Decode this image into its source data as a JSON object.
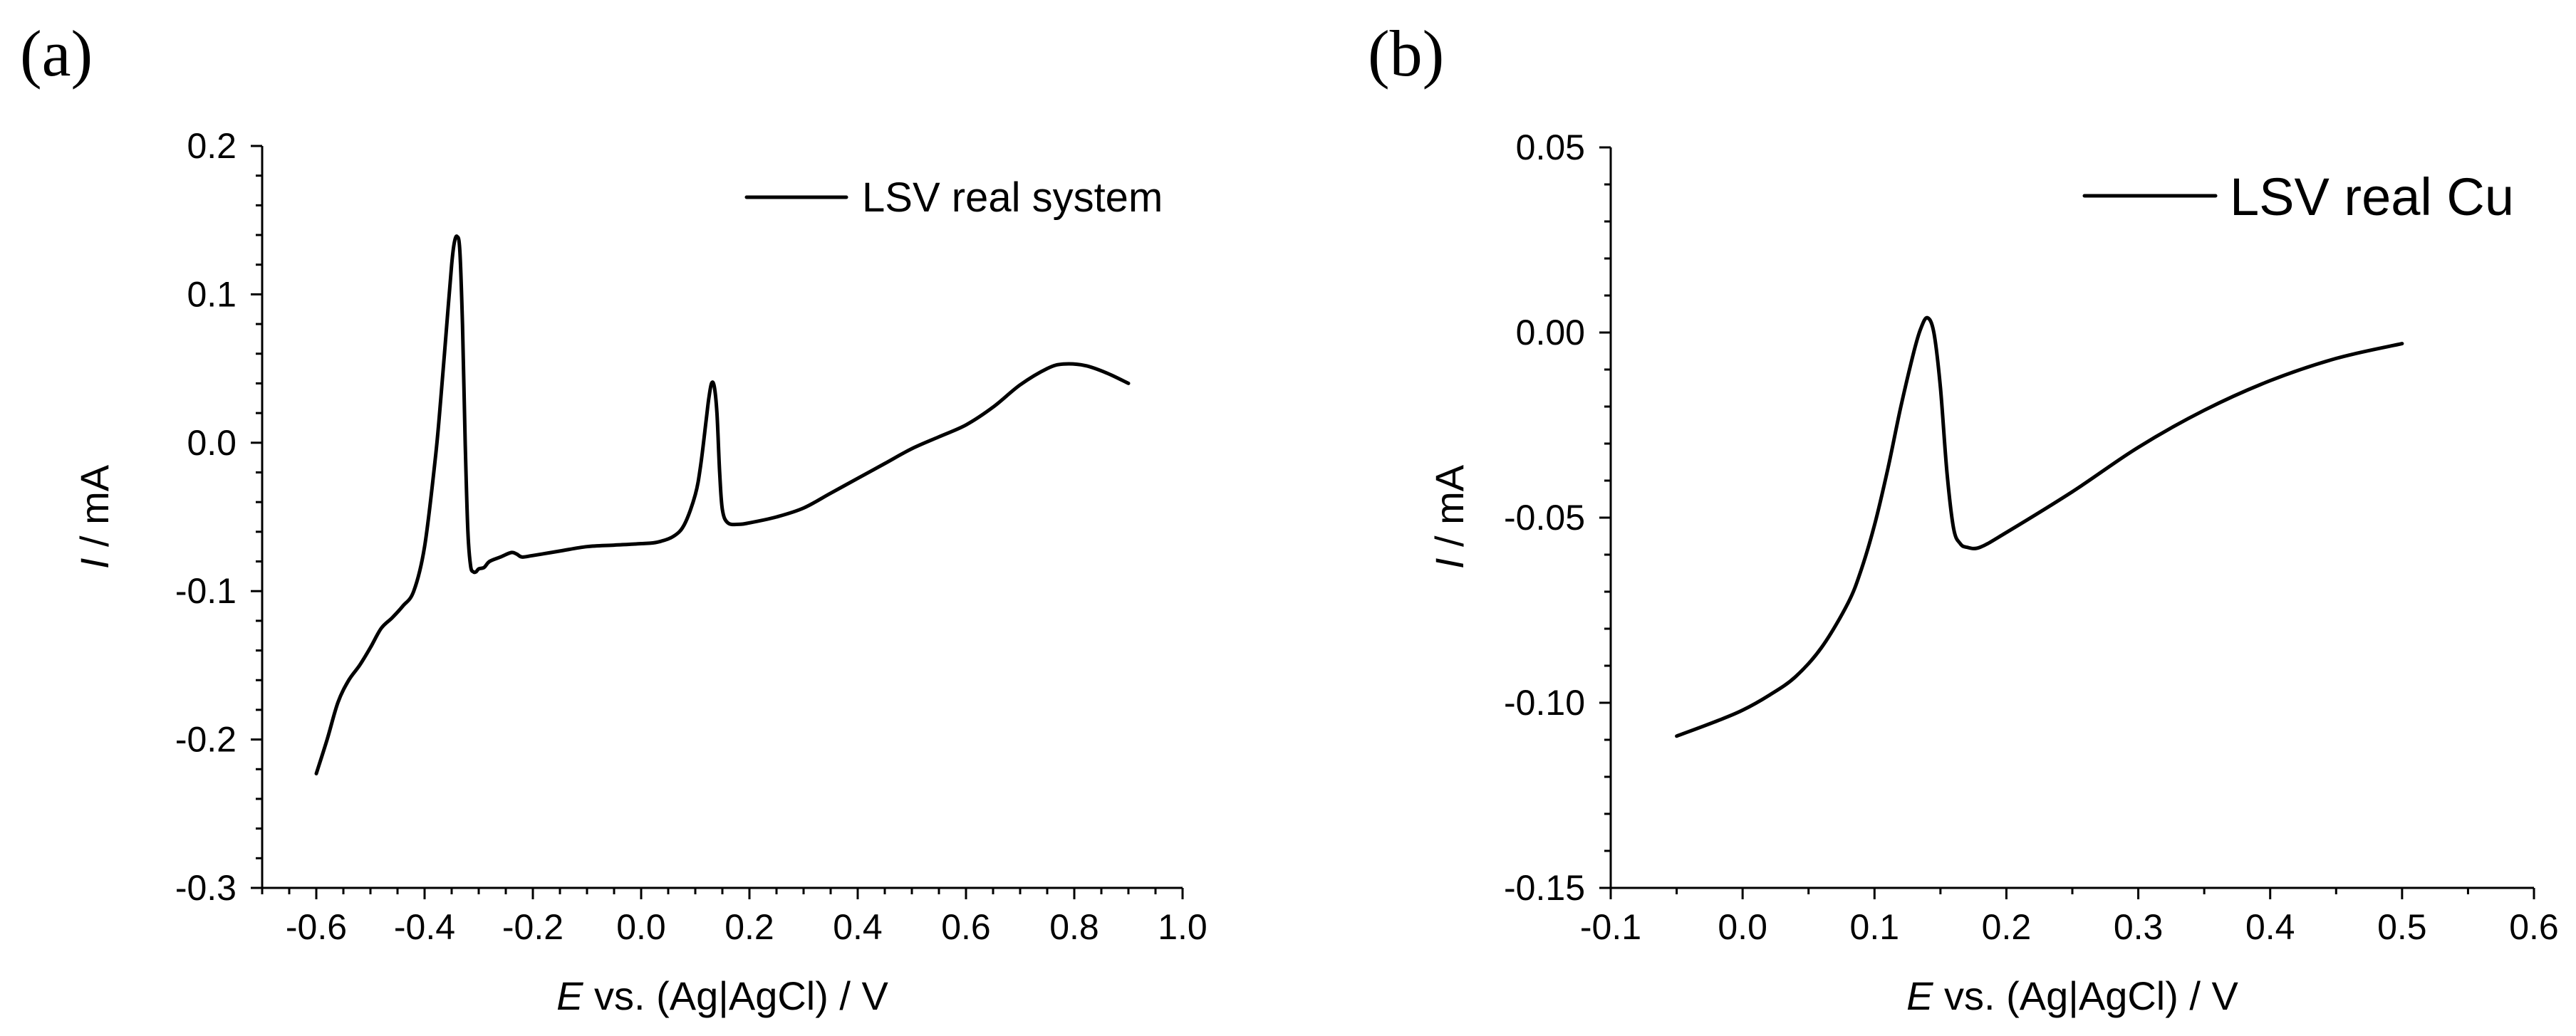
{
  "chart_data": [
    {
      "type": "line",
      "panel_label": "(a)",
      "title": "",
      "xlabel_italic": "E",
      "xlabel_rest": " vs. (Ag|AgCl) / V",
      "ylabel_italic": "I",
      "ylabel_rest": " / mA",
      "xlim": [
        -0.7,
        1.0
      ],
      "ylim": [
        -0.3,
        0.2
      ],
      "xticks": [
        "-0.6",
        "-0.4",
        "-0.2",
        "0.0",
        "0.2",
        "0.4",
        "0.6",
        "0.8",
        "1.0"
      ],
      "xtick_values": [
        -0.6,
        -0.4,
        -0.2,
        0.0,
        0.2,
        0.4,
        0.6,
        0.8,
        1.0
      ],
      "yticks": [
        "0.2",
        "0.1",
        "0.0",
        "-0.1",
        "-0.2",
        "-0.3"
      ],
      "ytick_values": [
        0.2,
        0.1,
        0.0,
        -0.1,
        -0.2,
        -0.3
      ],
      "grid": false,
      "legend_position": "top-right",
      "series": [
        {
          "name": "LSV real system",
          "x": [
            -0.6,
            -0.58,
            -0.56,
            -0.54,
            -0.52,
            -0.5,
            -0.48,
            -0.46,
            -0.44,
            -0.42,
            -0.4,
            -0.38,
            -0.37,
            -0.36,
            -0.35,
            -0.345,
            -0.34,
            -0.335,
            -0.33,
            -0.325,
            -0.32,
            -0.315,
            -0.31,
            -0.305,
            -0.3,
            -0.29,
            -0.28,
            -0.26,
            -0.24,
            -0.23,
            -0.22,
            -0.2,
            -0.15,
            -0.1,
            -0.05,
            0.0,
            0.03,
            0.06,
            0.08,
            0.1,
            0.11,
            0.12,
            0.125,
            0.13,
            0.135,
            0.14,
            0.145,
            0.15,
            0.16,
            0.18,
            0.2,
            0.25,
            0.3,
            0.35,
            0.4,
            0.45,
            0.5,
            0.55,
            0.6,
            0.65,
            0.7,
            0.75,
            0.78,
            0.82,
            0.86,
            0.9
          ],
          "y": [
            -0.223,
            -0.2,
            -0.175,
            -0.16,
            -0.15,
            -0.138,
            -0.125,
            -0.118,
            -0.11,
            -0.1,
            -0.07,
            -0.01,
            0.03,
            0.075,
            0.12,
            0.135,
            0.139,
            0.13,
            0.08,
            0.0,
            -0.06,
            -0.083,
            -0.087,
            -0.087,
            -0.085,
            -0.084,
            -0.08,
            -0.077,
            -0.074,
            -0.075,
            -0.077,
            -0.076,
            -0.073,
            -0.07,
            -0.069,
            -0.068,
            -0.067,
            -0.063,
            -0.055,
            -0.035,
            -0.015,
            0.015,
            0.03,
            0.04,
            0.038,
            0.02,
            -0.02,
            -0.045,
            -0.054,
            -0.055,
            -0.054,
            -0.05,
            -0.044,
            -0.034,
            -0.024,
            -0.014,
            -0.004,
            0.004,
            0.012,
            0.024,
            0.039,
            0.05,
            0.053,
            0.052,
            0.047,
            0.04
          ]
        }
      ]
    },
    {
      "type": "line",
      "panel_label": "(b)",
      "title": "",
      "xlabel_italic": "E",
      "xlabel_rest": " vs. (Ag|AgCl) / V",
      "ylabel_italic": "I",
      "ylabel_rest": " / mA",
      "xlim": [
        -0.1,
        0.6
      ],
      "ylim": [
        -0.15,
        0.05
      ],
      "xticks": [
        "-0.1",
        "0.0",
        "0.1",
        "0.2",
        "0.3",
        "0.4",
        "0.5",
        "0.6"
      ],
      "xtick_values": [
        -0.1,
        0.0,
        0.1,
        0.2,
        0.3,
        0.4,
        0.5,
        0.6
      ],
      "yticks": [
        "0.05",
        "0.00",
        "-0.05",
        "-0.10",
        "-0.15"
      ],
      "ytick_values": [
        0.05,
        0.0,
        -0.05,
        -0.1,
        -0.15
      ],
      "grid": false,
      "legend_position": "top-right",
      "series": [
        {
          "name": "LSV real Cu",
          "x": [
            -0.05,
            -0.02,
            0.0,
            0.02,
            0.04,
            0.06,
            0.08,
            0.09,
            0.1,
            0.11,
            0.12,
            0.13,
            0.135,
            0.14,
            0.145,
            0.15,
            0.155,
            0.16,
            0.165,
            0.17,
            0.18,
            0.2,
            0.25,
            0.3,
            0.35,
            0.4,
            0.45,
            0.5
          ],
          "y": [
            -0.109,
            -0.105,
            -0.102,
            -0.098,
            -0.093,
            -0.085,
            -0.073,
            -0.064,
            -0.052,
            -0.037,
            -0.02,
            -0.005,
            0.001,
            0.004,
            0.0,
            -0.015,
            -0.038,
            -0.053,
            -0.057,
            -0.058,
            -0.058,
            -0.054,
            -0.043,
            -0.031,
            -0.021,
            -0.013,
            -0.007,
            -0.003
          ]
        }
      ]
    }
  ]
}
